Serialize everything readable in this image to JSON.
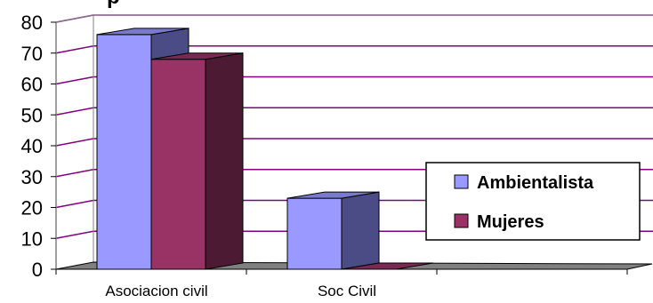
{
  "chart_data": {
    "type": "bar",
    "title_fragment": "p",
    "categories": [
      "Asociacion civil",
      "Soc Civil",
      ""
    ],
    "series": [
      {
        "name": "Ambientalista",
        "values": [
          76,
          23,
          null
        ],
        "color": "#9999FF",
        "side_color": "#4B4B86",
        "top_color": "#7A7ACC"
      },
      {
        "name": "Mujeres",
        "values": [
          68,
          0,
          null
        ],
        "color": "#993366",
        "side_color": "#4D1A33",
        "top_color": "#7A2952"
      }
    ],
    "yticks": [
      "0",
      "10",
      "20",
      "30",
      "40",
      "50",
      "60",
      "70",
      "80"
    ],
    "ylim": [
      0,
      80
    ],
    "grid": true,
    "grid_color": "#800080",
    "floor_color": "#808080",
    "legend_placement": "right"
  }
}
